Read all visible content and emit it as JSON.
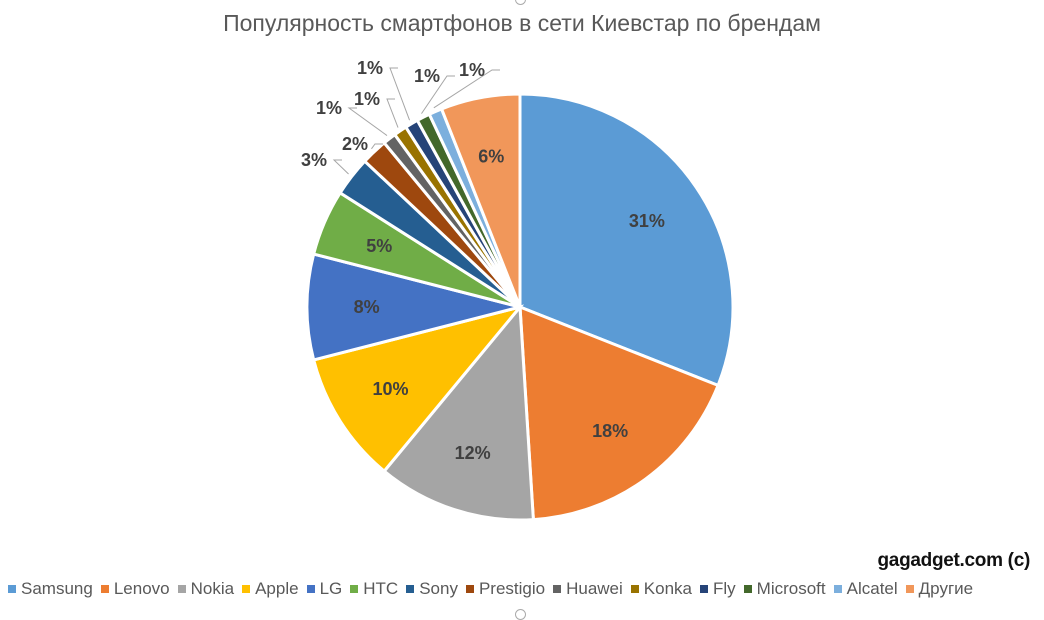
{
  "chart_data": {
    "type": "pie",
    "title": "Популярность смартфонов в сети Киевстар по брендам",
    "unit": "%",
    "start": "top, clockwise",
    "categories": [
      "Samsung",
      "Lenovo",
      "Nokia",
      "Apple",
      "LG",
      "HTC",
      "Sony",
      "Prestigio",
      "Huawei",
      "Konka",
      "Fly",
      "Microsoft",
      "Alcatel",
      "Другие"
    ],
    "values": [
      31,
      18,
      12,
      10,
      8,
      5,
      3,
      2,
      1,
      1,
      1,
      1,
      1,
      6
    ],
    "labels": [
      "31%",
      "18%",
      "12%",
      "10%",
      "8%",
      "5%",
      "3%",
      "2%",
      "1%",
      "1%",
      "1%",
      "1%",
      "1%",
      "6%"
    ],
    "colors": [
      "#5B9BD5",
      "#ED7D31",
      "#A5A5A5",
      "#FFC000",
      "#4472C4",
      "#70AD47",
      "#255E91",
      "#9E480E",
      "#636363",
      "#997300",
      "#264478",
      "#43682B",
      "#7CAFDD",
      "#F1975A"
    ],
    "legend_position": "bottom"
  },
  "watermark": "gagadget.com (c)"
}
